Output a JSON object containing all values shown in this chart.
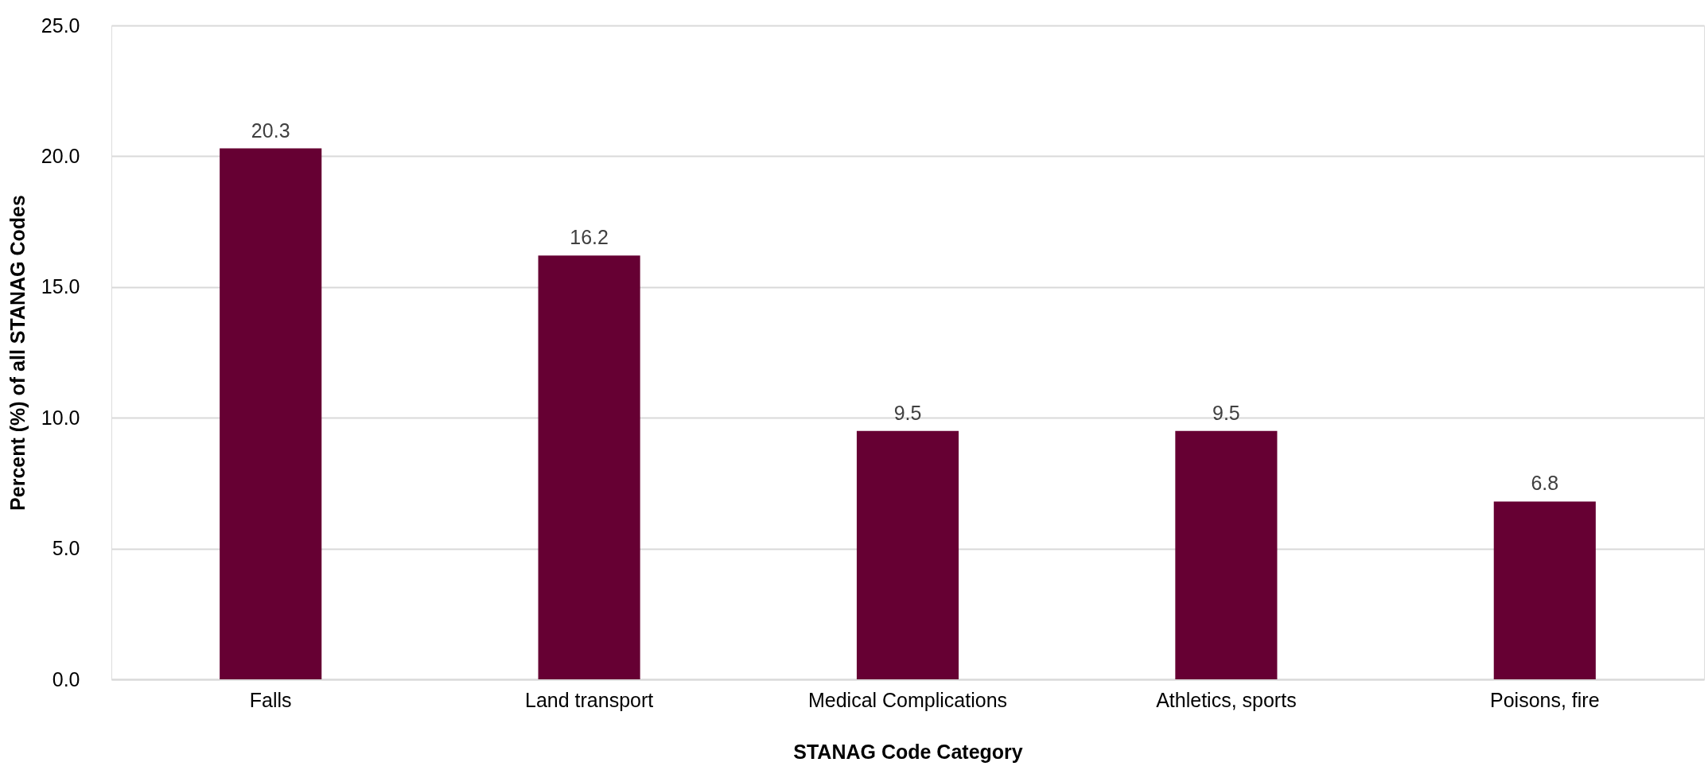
{
  "chart_data": {
    "type": "bar",
    "xlabel": "STANAG Code Category",
    "ylabel": "Percent (%) of all STANAG Codes",
    "categories": [
      "Falls",
      "Land transport",
      "Medical Complications",
      "Athletics, sports",
      "Poisons, fire"
    ],
    "values": [
      20.3,
      16.2,
      9.5,
      9.5,
      6.8
    ],
    "color": "#660033",
    "ylim": [
      0,
      25
    ],
    "yticks": [
      {
        "value": 0,
        "label": "0.0"
      },
      {
        "value": 5,
        "label": "5.0"
      },
      {
        "value": 10,
        "label": "10.0"
      },
      {
        "value": 15,
        "label": "15.0"
      },
      {
        "value": 20,
        "label": "20.0"
      },
      {
        "value": 25,
        "label": "25.0"
      }
    ],
    "grid": "y",
    "data_labels": true
  }
}
